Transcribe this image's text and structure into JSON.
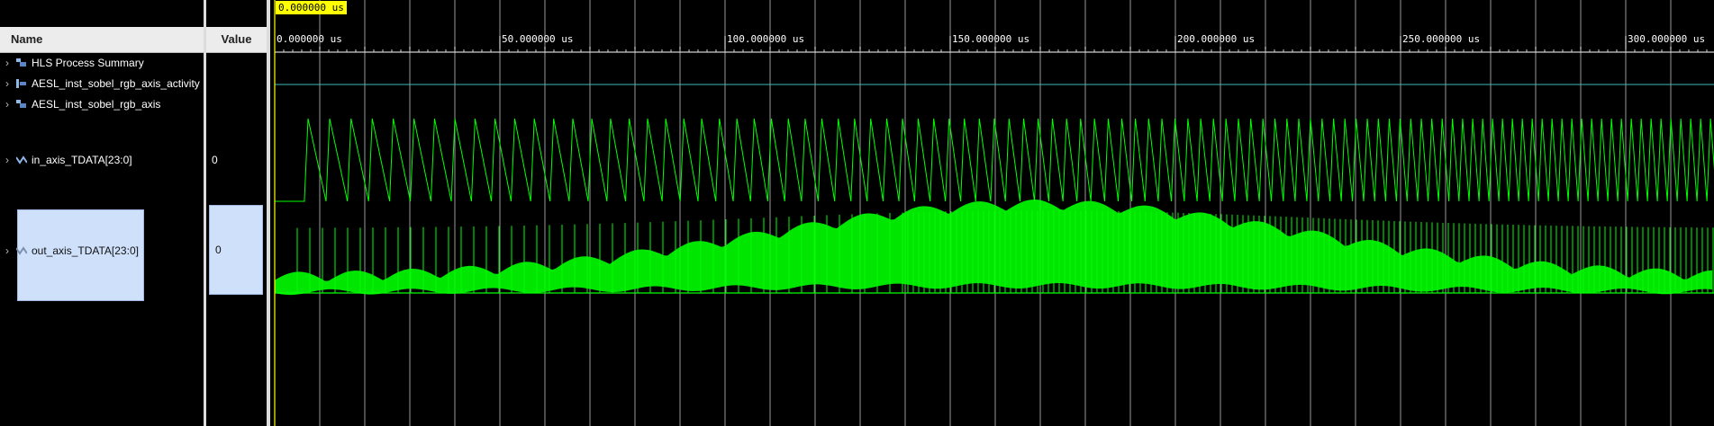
{
  "columns": {
    "name": "Name",
    "value": "Value"
  },
  "cursor": {
    "time_label": "0.000000 us"
  },
  "signals": [
    {
      "name": "HLS Process Summary",
      "icon": "group-icon",
      "value": ""
    },
    {
      "name": "AESL_inst_sobel_rgb_axis_activity",
      "icon": "activity-icon",
      "value": ""
    },
    {
      "name": "AESL_inst_sobel_rgb_axis",
      "icon": "group-icon",
      "value": ""
    },
    {
      "name": "in_axis_TDATA[23:0]",
      "icon": "analog-bus-icon",
      "value": "0"
    },
    {
      "name": "out_axis_TDATA[23:0]",
      "icon": "analog-bus-icon",
      "value": "0"
    }
  ],
  "timeline": {
    "labels": [
      "0.000000 us",
      "50.000000 us",
      "100.000000 us",
      "150.000000 us",
      "200.000000 us",
      "250.000000 us",
      "300.000000 us"
    ],
    "major_step_us": 50,
    "minor_per_major": 5
  },
  "colors": {
    "waveform": "#00ff00",
    "activity": "#3fb8b8",
    "grid": "#9a9a9a",
    "cursor": "#ffff00",
    "selection": "#cfe0fb"
  }
}
